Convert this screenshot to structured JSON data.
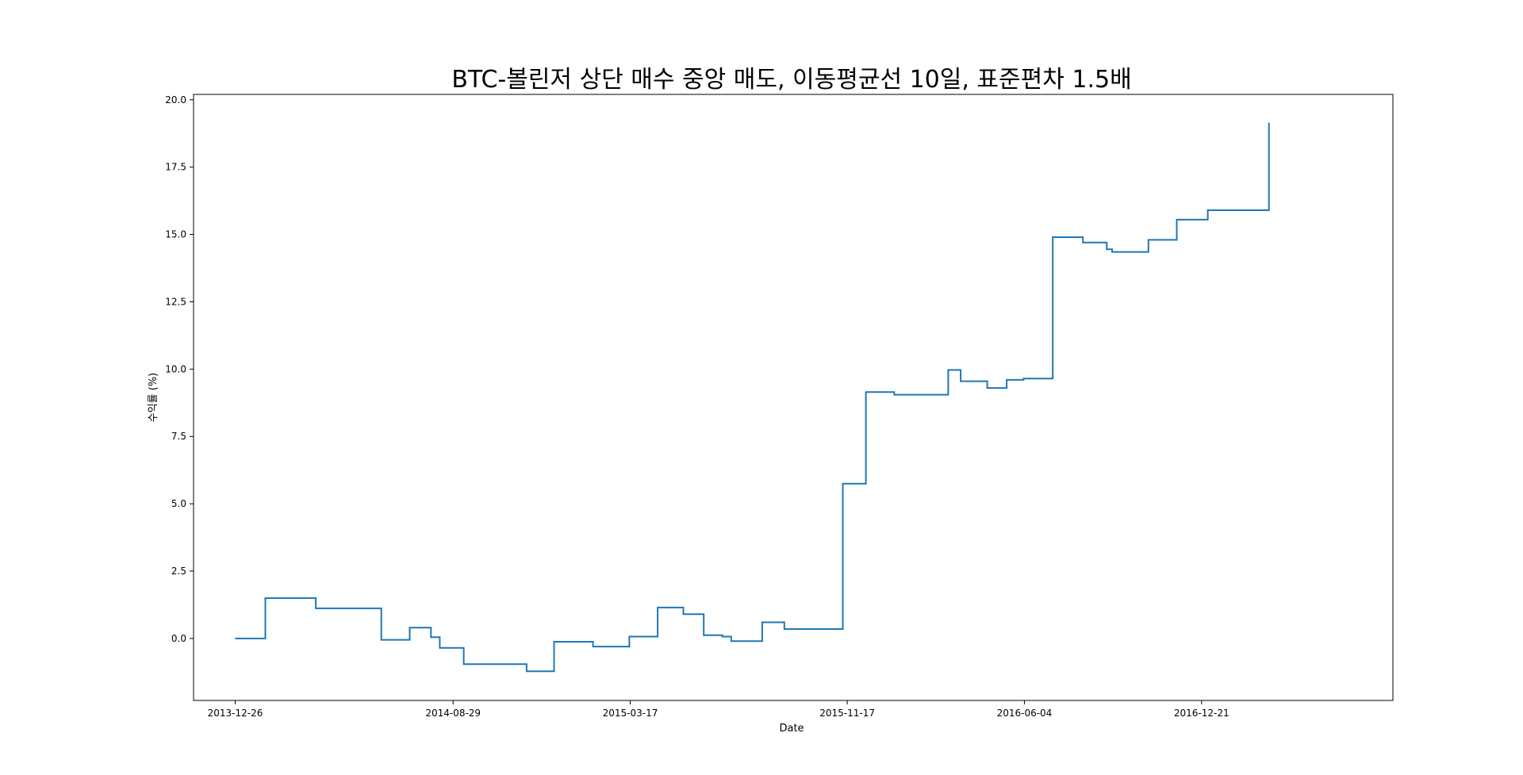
{
  "chart_data": {
    "type": "line",
    "title": "BTC-볼린저 상단 매수 중앙 매도, 이동평균선 10일, 표준편차 1.5배",
    "xlabel": "Date",
    "ylabel": "수익률 (%)",
    "x_ticks": [
      "2013-12-26",
      "2014-08-29",
      "2015-03-17",
      "2015-11-17",
      "2016-06-04",
      "2016-12-21"
    ],
    "y_ticks": [
      "0.0",
      "2.5",
      "5.0",
      "7.5",
      "10.0",
      "12.5",
      "15.0",
      "17.5",
      "20.0"
    ],
    "ylim": [
      -2.3,
      20.2
    ],
    "xlim": [
      "2013-11-09",
      "2017-07-25"
    ],
    "grid": false,
    "legend": "none",
    "line_color": "#1f77b4",
    "step": "post",
    "series": [
      {
        "x": [
          "2013-12-26",
          "2014-01-29",
          "2014-03-27",
          "2014-06-09",
          "2014-07-11",
          "2014-08-04",
          "2014-08-14",
          "2014-09-10",
          "2014-11-20",
          "2014-12-21",
          "2015-02-03",
          "2015-03-16",
          "2015-04-17",
          "2015-05-16",
          "2015-06-08",
          "2015-06-29",
          "2015-07-09",
          "2015-08-13",
          "2015-09-07",
          "2015-11-12",
          "2015-12-08",
          "2016-01-09",
          "2016-03-10",
          "2016-03-24",
          "2016-04-23",
          "2016-05-15",
          "2016-06-03",
          "2016-07-06",
          "2016-08-09",
          "2016-09-05",
          "2016-09-11",
          "2016-10-22",
          "2016-11-23",
          "2016-12-28",
          "2017-03-07"
        ],
        "y": [
          0.0,
          1.5,
          1.12,
          -0.05,
          0.4,
          0.05,
          -0.35,
          -0.95,
          -1.22,
          -0.12,
          -0.3,
          0.07,
          1.15,
          0.9,
          0.12,
          0.07,
          -0.1,
          0.6,
          0.35,
          5.75,
          9.15,
          9.05,
          9.97,
          9.55,
          9.3,
          9.6,
          9.65,
          14.9,
          14.7,
          14.45,
          14.35,
          14.8,
          15.55,
          15.9,
          19.15
        ]
      }
    ]
  }
}
